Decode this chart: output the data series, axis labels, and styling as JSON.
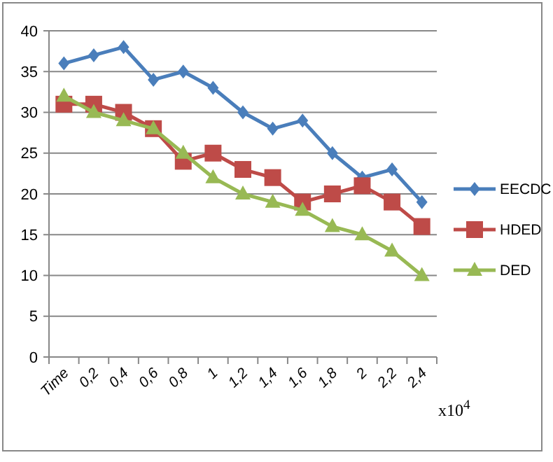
{
  "chart_data": {
    "type": "line",
    "categories": [
      "Time",
      "0,2",
      "0,4",
      "0,6",
      "0,8",
      "1",
      "1,2",
      "1,4",
      "1,6",
      "1,8",
      "2",
      "2,2",
      "2,4"
    ],
    "series": [
      {
        "name": "EECDC",
        "color": "#4a7ebb",
        "marker": "diamond",
        "values": [
          36,
          37,
          38,
          34,
          35,
          33,
          30,
          28,
          29,
          25,
          22,
          23,
          19
        ]
      },
      {
        "name": "HDED",
        "color": "#be4b48",
        "marker": "square",
        "values": [
          31,
          31,
          30,
          28,
          24,
          25,
          23,
          22,
          19,
          20,
          21,
          19,
          16
        ]
      },
      {
        "name": "DED",
        "color": "#98b954",
        "marker": "triangle",
        "values": [
          32,
          30,
          29,
          28,
          25,
          22,
          20,
          19,
          18,
          16,
          15,
          13,
          10
        ]
      }
    ],
    "ylim": [
      0,
      40
    ],
    "yticks": [
      0,
      5,
      10,
      15,
      20,
      25,
      30,
      35,
      40
    ],
    "grid": "y",
    "legend": "right",
    "annotations": [
      "x10$^{4}$"
    ]
  }
}
